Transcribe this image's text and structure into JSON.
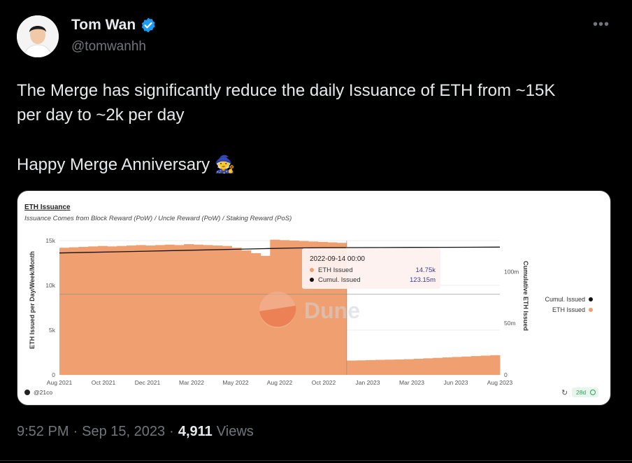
{
  "author": {
    "name": "Tom Wan",
    "handle": "@tomwanhh",
    "verified_color": "#1d9bf0"
  },
  "more_icon": "more-horizontal-icon",
  "tweet": {
    "line1": "The Merge has significantly reduce the daily Issuance of ETH from ~15K",
    "line2": "per day to ~2k per day",
    "line3": "Happy Merge Anniversary 🧙"
  },
  "meta": {
    "time": "9:52 PM",
    "date": "Sep 15, 2023",
    "views_count": "4,911",
    "views_label": "Views"
  },
  "chart_data": {
    "type": "bar",
    "title": "ETH Issuance",
    "subtitle": "Issuance Comes from Block Reward (PoW) / Uncle Reward (PoW) / Staking Reward (PoS)",
    "ylabel": "ETH Issued per Day/Week/Month",
    "y2label": "Cumulative ETH Issued",
    "y_ticks": [
      "0",
      "5k",
      "10k",
      "15k"
    ],
    "y2_ticks": [
      "0",
      "50m",
      "100m"
    ],
    "ylim": [
      0,
      15000
    ],
    "x_ticks": [
      "Aug 2021",
      "Oct 2021",
      "Dec 2021",
      "Mar 2022",
      "May 2022",
      "Aug 2022",
      "Oct 2022",
      "Jan 2023",
      "Mar 2023",
      "Jun 2023",
      "Aug 2023"
    ],
    "series": [
      {
        "name": "ETH Issued",
        "color": "#f0a070",
        "values": [
          14200,
          14250,
          14300,
          14350,
          14400,
          14350,
          14400,
          14450,
          14500,
          14450,
          14500,
          14550,
          14500,
          14600,
          14550,
          14500,
          14450,
          14400,
          14200,
          13900,
          13600,
          13300,
          15100,
          15050,
          15000,
          14950,
          14900,
          14850,
          14800,
          14750,
          1600,
          1620,
          1650,
          1680,
          1700,
          1720,
          1750,
          1800,
          1850,
          1900,
          1950,
          2000,
          2050,
          2100,
          2150,
          2200
        ]
      },
      {
        "name": "Cumul. Issued",
        "color": "#111111",
        "y2lim": [
          0,
          130000000
        ],
        "values": [
          118000000,
          118600000,
          119200000,
          119800000,
          120400000,
          121000000,
          121600000,
          122200000,
          122800000,
          123150000,
          123200000,
          123300000,
          123400000,
          123500000,
          123600000,
          123700000
        ]
      }
    ],
    "tooltip": {
      "date": "2022-09-14 00:00",
      "rows": [
        {
          "label": "ETH Issued",
          "value": "14.75k",
          "color": "#f0a070"
        },
        {
          "label": "Cumul. Issued",
          "value": "123.15m",
          "color": "#111111"
        }
      ]
    },
    "legend": {
      "position": "right",
      "items": [
        {
          "label": "Cumul. Issued",
          "color": "#111111"
        },
        {
          "label": "ETH Issued",
          "color": "#f0a070"
        }
      ]
    },
    "watermark": "Dune",
    "footer_user": "@21co",
    "footer_badge": "28d"
  }
}
